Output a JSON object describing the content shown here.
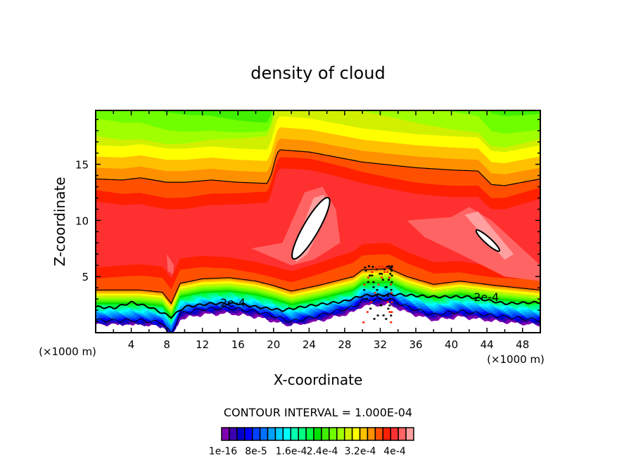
{
  "chart_data": {
    "type": "heatmap",
    "subtype": "filled-contour",
    "title": "density of cloud",
    "xlabel": "X-coordinate",
    "ylabel": "Z-coordinate",
    "x_unit_left": "(×1000 m)",
    "x_unit_right": "(×1000 m)",
    "xlim": [
      0,
      50
    ],
    "ylim": [
      0,
      19.8
    ],
    "xticks": [
      "4",
      "8",
      "12",
      "16",
      "20",
      "24",
      "28",
      "32",
      "36",
      "40",
      "44",
      "48"
    ],
    "xtick_values": [
      4,
      8,
      12,
      16,
      20,
      24,
      28,
      32,
      36,
      40,
      44,
      48
    ],
    "yticks": [
      "5",
      "10",
      "15"
    ],
    "ytick_values": [
      5,
      10,
      15
    ],
    "contour_interval_text": "CONTOUR INTERVAL = 1.000E-04",
    "contour_label": "2e-4",
    "colorbar_labels": [
      "1e-16",
      "8e-5",
      "1.6e-4",
      "2.4e-4",
      "3.2e-4",
      "4e-4"
    ],
    "colors": [
      "#8000b0",
      "#3c00b0",
      "#0000c8",
      "#0000ff",
      "#0040ff",
      "#0070ff",
      "#00a0ff",
      "#00d0ff",
      "#00ffff",
      "#00ffb0",
      "#00ff80",
      "#00ff40",
      "#00e000",
      "#40f000",
      "#70ff00",
      "#a0ff00",
      "#d0f000",
      "#ffff00",
      "#ffc000",
      "#ff9000",
      "#ff5000",
      "#ff2000",
      "#ff3030",
      "#ff6464",
      "#ffa0a0"
    ],
    "upper_contour": [
      [
        0,
        13.7
      ],
      [
        3,
        13.6
      ],
      [
        5,
        13.8
      ],
      [
        8,
        13.4
      ],
      [
        10,
        13.4
      ],
      [
        13,
        13.6
      ],
      [
        16,
        13.4
      ],
      [
        19.3,
        13.3
      ],
      [
        19.8,
        14.2
      ],
      [
        20.2,
        15.5
      ],
      [
        20.6,
        16.3
      ],
      [
        24,
        16.1
      ],
      [
        30,
        15.2
      ],
      [
        36,
        14.7
      ],
      [
        40,
        14.5
      ],
      [
        43,
        14.4
      ],
      [
        44.5,
        13.2
      ],
      [
        46,
        13.1
      ],
      [
        50,
        13.7
      ]
    ],
    "lower_contour": [
      [
        0,
        3.8
      ],
      [
        5,
        3.8
      ],
      [
        7.5,
        3.6
      ],
      [
        8.5,
        2.6
      ],
      [
        9.5,
        4.4
      ],
      [
        12,
        4.8
      ],
      [
        15,
        4.9
      ],
      [
        18,
        4.6
      ],
      [
        20,
        4.2
      ],
      [
        22,
        3.7
      ],
      [
        25,
        4.2
      ],
      [
        27,
        4.6
      ],
      [
        29,
        5.0
      ],
      [
        30,
        5.6
      ],
      [
        33,
        5.7
      ],
      [
        35,
        5.0
      ],
      [
        38,
        4.3
      ],
      [
        41,
        4.6
      ],
      [
        45,
        4.2
      ],
      [
        50,
        3.8
      ]
    ],
    "contour_2e4": [
      [
        0,
        2.3
      ],
      [
        2,
        2.2
      ],
      [
        4,
        2.7
      ],
      [
        6,
        2.3
      ],
      [
        8.5,
        1.4
      ],
      [
        10,
        2.3
      ],
      [
        13,
        2.6
      ],
      [
        16,
        2.6
      ],
      [
        18,
        2.3
      ],
      [
        21,
        2.0
      ],
      [
        24,
        2.4
      ],
      [
        28,
        2.8
      ],
      [
        30,
        3.3
      ],
      [
        34,
        3.4
      ],
      [
        38,
        3.2
      ],
      [
        42,
        3.2
      ],
      [
        46,
        2.6
      ],
      [
        50,
        2.7
      ]
    ],
    "maxima": [
      {
        "x": 24.2,
        "z": 9.3,
        "label": "> 4e-4"
      },
      {
        "x": 44.1,
        "z": 8.2,
        "label": "> 4e-4"
      }
    ]
  }
}
